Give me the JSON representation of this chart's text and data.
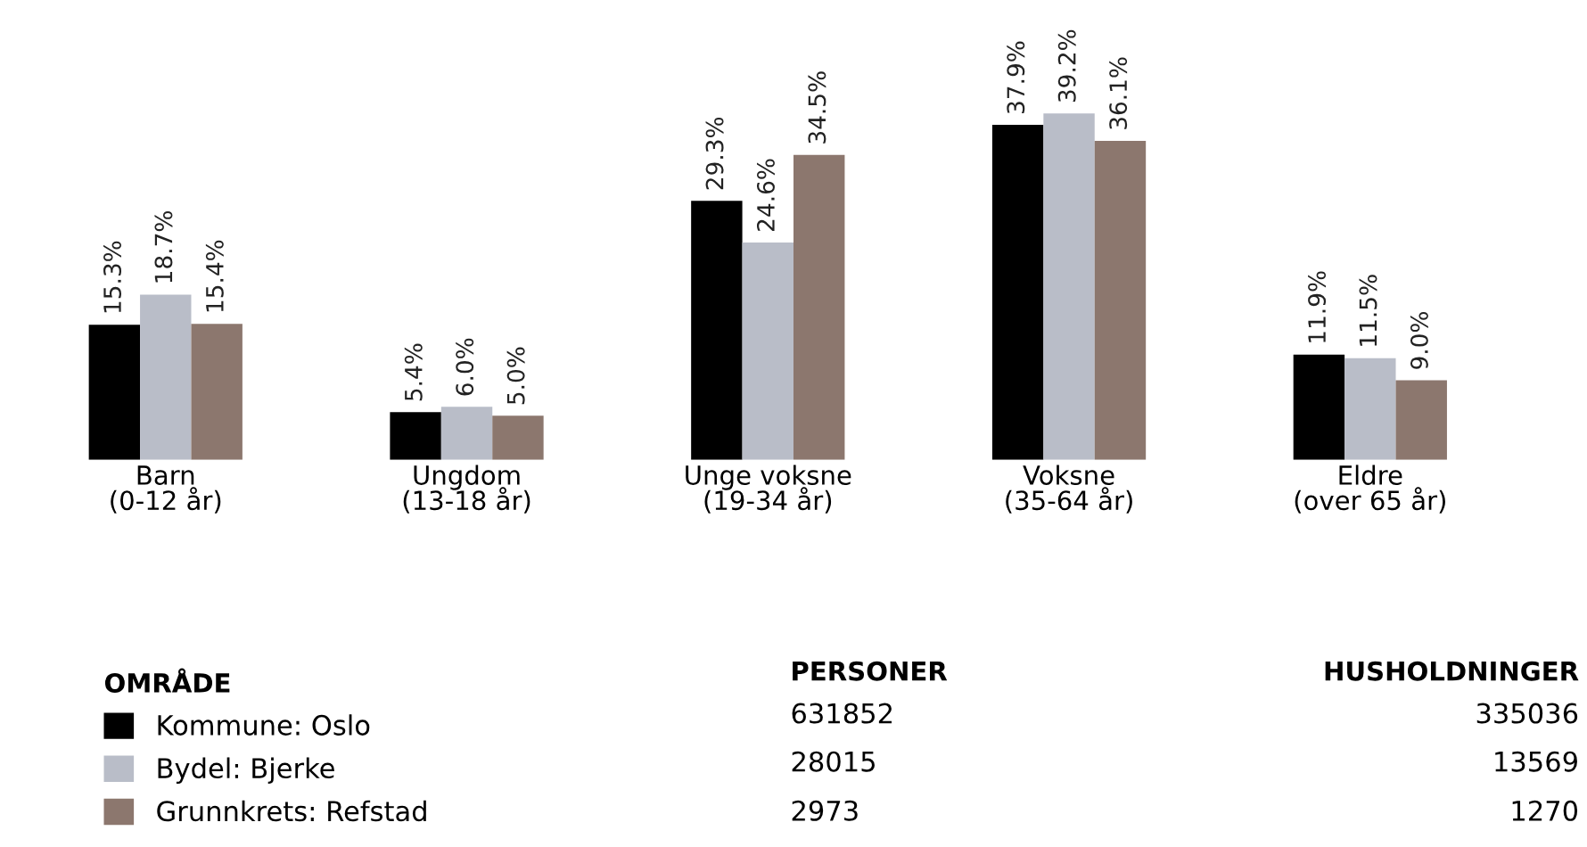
{
  "chart_data": {
    "type": "bar",
    "categories": [
      "Barn\n(0-12 år)",
      "Ungdom\n(13-18 år)",
      "Unge voksne\n(19-34 år)",
      "Voksne\n(35-64 år)",
      "Eldre\n(over 65 år)"
    ],
    "series": [
      {
        "name": "Kommune: Oslo",
        "color": "#000000",
        "values": [
          15.3,
          5.4,
          29.3,
          37.9,
          11.9
        ],
        "value_labels": [
          "15.3%",
          "5.4%",
          "29.3%",
          "37.9%",
          "11.9%"
        ]
      },
      {
        "name": "Bydel: Bjerke",
        "color": "#b9bdc8",
        "values": [
          18.7,
          6.0,
          24.6,
          39.2,
          11.5
        ],
        "value_labels": [
          "18.7%",
          "6.0%",
          "24.6%",
          "39.2%",
          "11.5%"
        ]
      },
      {
        "name": "Grunnkrets: Refstad",
        "color": "#8c776e",
        "values": [
          15.4,
          5.0,
          34.5,
          36.1,
          9.0
        ],
        "value_labels": [
          "15.4%",
          "5.0%",
          "34.5%",
          "36.1%",
          "9.0%"
        ]
      }
    ],
    "legend": "bottom left",
    "legend_title": "OMRÅDE",
    "grid": false,
    "annotations": [
      "PERSONER",
      "631852",
      "28015",
      "2973",
      "HUSHOLDNINGER",
      "335036",
      "13569",
      "1270"
    ]
  }
}
